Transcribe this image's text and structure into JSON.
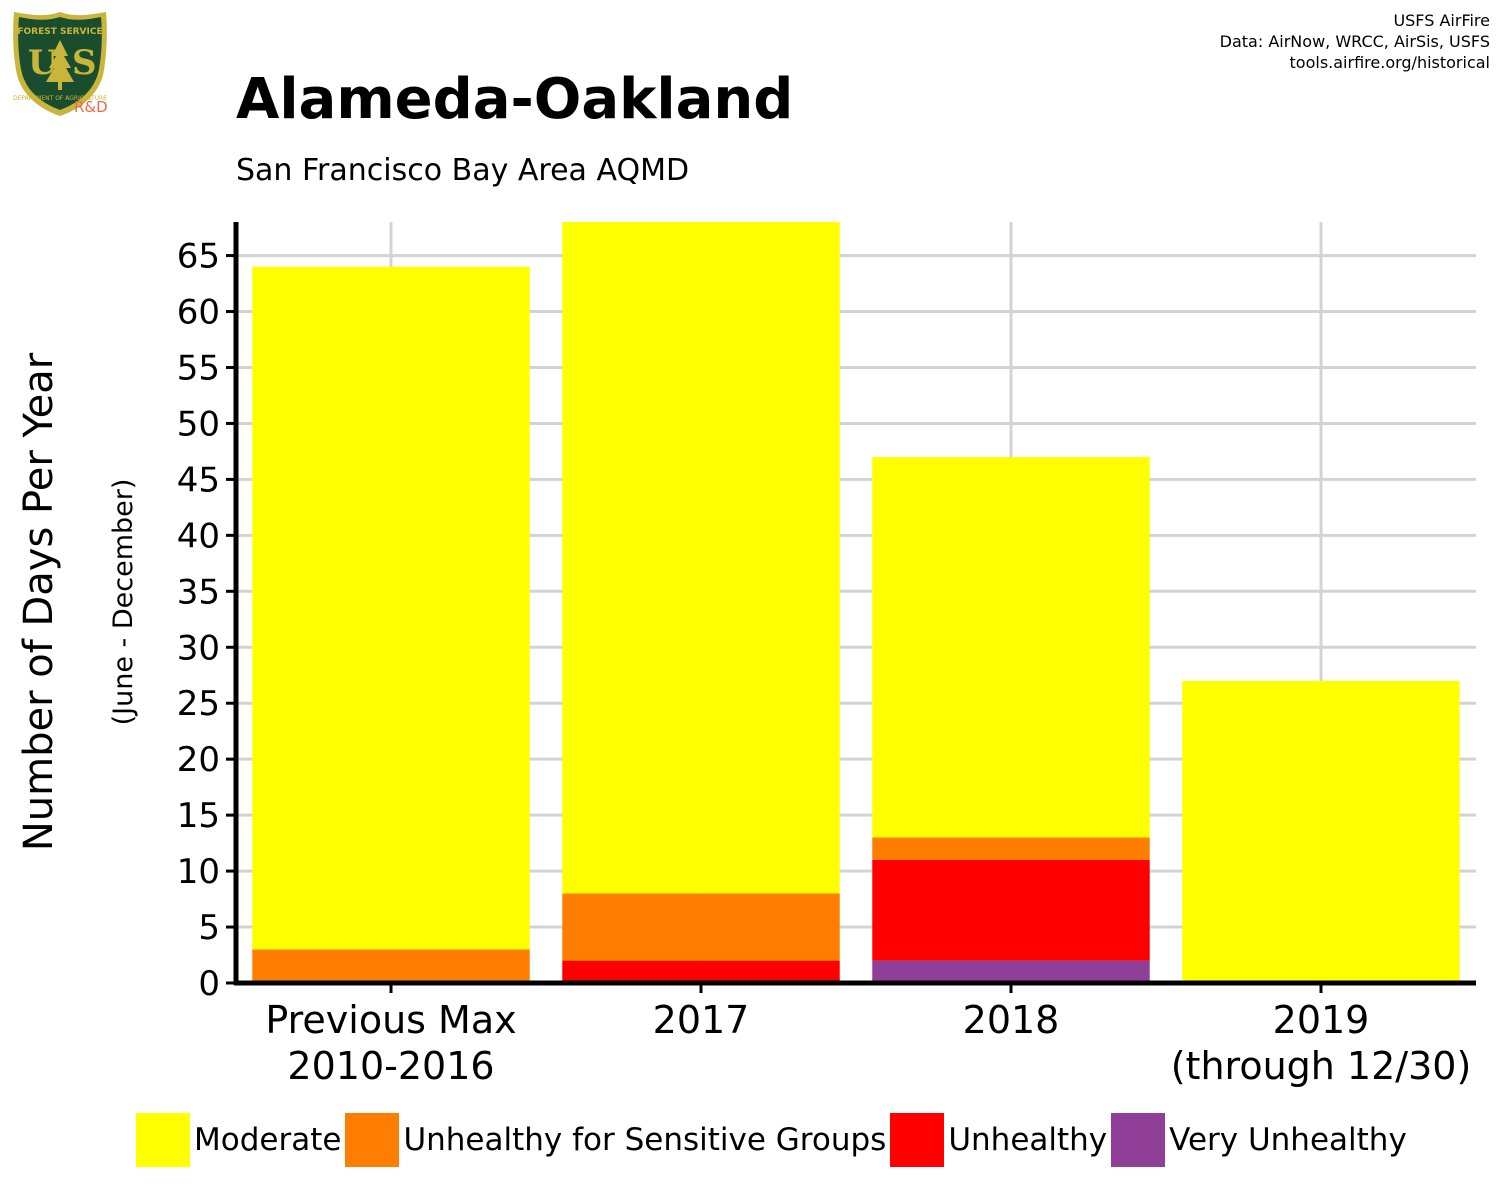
{
  "header": {
    "credits": [
      "USFS AirFire",
      "Data: AirNow, WRCC, AirSis, USFS",
      "tools.airfire.org/historical"
    ],
    "logo": {
      "top_text": "FOREST SERVICE",
      "mark": "US",
      "bottom_text": "DEPARTMENT OF AGRICULTURE",
      "suffix": "R&D"
    }
  },
  "colors": {
    "moderate": "#ffff00",
    "usg": "#ff7e00",
    "unhealthy": "#ff0000",
    "very_unhealthy": "#8f3f97",
    "grid": "#d3d3d3",
    "logo_green": "#1a4d2e",
    "logo_gold": "#c9b53b"
  },
  "chart_data": {
    "type": "bar",
    "stacked": true,
    "title": "Alameda-Oakland",
    "subtitle": "San Francisco Bay Area AQMD",
    "ylabel": "Number of Days Per Year",
    "ylabel_sub": "(June - December)",
    "xlabel": "",
    "categories": [
      [
        "Previous Max",
        "2010-2016"
      ],
      [
        "2017"
      ],
      [
        "2018"
      ],
      [
        "2019",
        "(through 12/30)"
      ]
    ],
    "series": [
      {
        "name": "Very Unhealthy",
        "key": "very_unhealthy",
        "values": [
          0,
          0,
          2,
          0
        ]
      },
      {
        "name": "Unhealthy",
        "key": "unhealthy",
        "values": [
          0,
          2,
          9,
          0
        ]
      },
      {
        "name": "Unhealthy for Sensitive Groups",
        "key": "usg",
        "values": [
          3,
          6,
          2,
          0
        ]
      },
      {
        "name": "Moderate",
        "key": "moderate",
        "values": [
          61,
          60,
          34,
          27
        ]
      }
    ],
    "ylim": [
      0,
      68
    ],
    "yticks": [
      0,
      5,
      10,
      15,
      20,
      25,
      30,
      35,
      40,
      45,
      50,
      55,
      60,
      65
    ],
    "grid": true,
    "legend_position": "bottom",
    "legend_order": [
      "moderate",
      "usg",
      "unhealthy",
      "very_unhealthy"
    ]
  }
}
